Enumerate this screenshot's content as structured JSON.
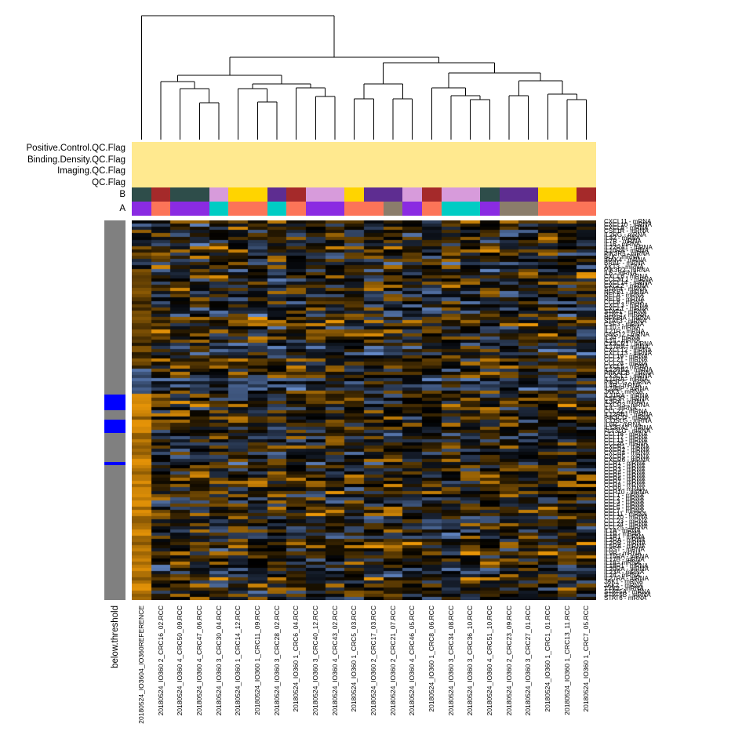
{
  "chart_data": {
    "type": "heatmap",
    "title": "",
    "columns": [
      "20180524_IO3604_IO360REFERENCE",
      "20180524_IO360 2_CRC16_02.RCC",
      "20180524_IO360 4_CRC50_09.RCC",
      "20180524_IO360 4_CRC47_06.RCC",
      "20180524_IO360 3_CRC30_04.RCC",
      "20180524_IO360 1_CRC14_12.RCC",
      "20180524_IO360 1_CRC11_09.RCC",
      "20180524_IO360 3_CRC28_02.RCC",
      "20180524_IO360 1_CRC6_04.RCC",
      "20180524_IO360 3_CRC40_12.RCC",
      "20180524_IO360 4_CRC43_02.RCC",
      "20180524_IO360 1_CRC5_03.RCC",
      "20180524_IO360 2_CRC17_03.RCC",
      "20180524_IO360 2_CRC21_07.RCC",
      "20180524_IO360 4_CRC46_05.RCC",
      "20180524_IO360 1_CRC8_06.RCC",
      "20180524_IO360 3_CRC34_08.RCC",
      "20180524_IO360 3_CRC36_10.RCC",
      "20180524_IO360 4_CRC51_10.RCC",
      "20180524_IO360 2_CRC23_09.RCC",
      "20180524_IO360 3_CRC27_01.RCC",
      "20180524_IO360 1_CRC1_01.RCC",
      "20180524_IO360 1_CRC13_11.RCC",
      "20180524_IO360 1_CRC7_05.RCC"
    ],
    "rows": [
      "CXCL11 - mRNA",
      "CXCL10 - mRNA",
      "CXCL9 - mRNA",
      "CSF1R - mRNA",
      "IL2RG - mRNA",
      "IL32 - mRNA",
      "IL7R - mRNA",
      "IL16 - mRNA",
      "IL22RA1 - mRNA",
      "IL10RA - mRNA",
      "PIK3R5 - mRNA",
      "BLK - mRNA",
      "IRAK4 - mRNA",
      "BRAF - mRNA",
      "AKT3 - mRNA",
      "PIK3R2 - mRNA",
      "IL6 - mRNA",
      "CXCL6 - mRNA",
      "CCL3/L1 - mRNA",
      "CXCL14 - mRNA",
      "CXCL2 - mRNA",
      "STAT4 - mRNA",
      "NFKB1 - mRNA",
      "RELA - mRNA",
      "RELB - mRNA",
      "CCL8 - mRNA",
      "CXCL3 - mRNA",
      "CXCL1 - mRNA",
      "STAT1 - mRNA",
      "STAT2 - mRNA",
      "NFKBIA - mRNA",
      "STAT3 - mRNA",
      "CSF3 - mRNA",
      "IL10 - mRNA",
      "IL21R - mRNA",
      "GNG12 - mRNA",
      "IL34 - mRNA",
      "IL15 - mRNA",
      "CX3CR1 - mRNA",
      "IL17RA - mRNA",
      "CXCL12 - mRNA",
      "CXCL13 - mRNA",
      "CCL19 - mRNA",
      "CCL21 - mRNA",
      "CCL28 - mRNA",
      "CXCL5 - mRNA",
      "IL12RB2 - mRNA",
      "PRKACB - mRNA",
      "CX3CL1 - mRNA",
      "IL11RA - mRNA",
      "PIK3CG - mRNA",
      "IL4R - mRNA",
      "IL18BP - mRNA",
      "JAK3 - mRNA",
      "IL31RA - mRNA",
      "CSF3R - mRNA",
      "IL3RA - mRNA",
      "CXCR3 - mRNA",
      "IL4 - mRNA",
      "CCL22 - mRNA",
      "IL12RB1 - mRNA",
      "PIK3CD - mRNA",
      "ICOSLG - mRNA",
      "IL6R - mRNA",
      "IL13RA1 - mRNA",
      "FLT3LG - mRNA",
      "CCL18 - mRNA",
      "CCL17 - mRNA",
      "CCL13 - mRNA",
      "CCL26 - mRNA",
      "CXCR1 - mRNA",
      "CXCR2 - mRNA",
      "CXCR4 - mRNA",
      "CXCR5 - mRNA",
      "CXCR6 - mRNA",
      "CCR1 - mRNA",
      "CCR2 - mRNA",
      "CCR3 - mRNA",
      "CCR4 - mRNA",
      "CCR5 - mRNA",
      "CCR6 - mRNA",
      "CCR7 - mRNA",
      "CCR8 - mRNA",
      "CCR9 - mRNA",
      "CCR10 - mRNA",
      "CCL1 - mRNA",
      "CCL2 - mRNA",
      "CCL3 - mRNA",
      "CCL4 - mRNA",
      "CCL5 - mRNA",
      "CCL7 - mRNA",
      "CCL11 - mRNA",
      "CCL20 - mRNA",
      "CCL23 - mRNA",
      "CCL24 - mRNA",
      "CCL25 - mRNA",
      "IL1A - mRNA",
      "IL1B - mRNA",
      "IL1R1 - mRNA",
      "IL2RA - mRNA",
      "IL2RB - mRNA",
      "IL5RA - mRNA",
      "IL6ST - mRNA",
      "IL9R - mRNA",
      "IL15RA - mRNA",
      "IL17B - mRNA",
      "IL18 - mRNA",
      "IL18R1 - mRNA",
      "IL20RA - mRNA",
      "IL23A - mRNA",
      "IL24 - mRNA",
      "IL27RA - mRNA",
      "JAK1 - mRNA",
      "JAK2 - mRNA",
      "TYK2 - mRNA",
      "STAT5A - mRNA",
      "STAT5B - mRNA",
      "STAT6 - mRNA"
    ],
    "annotation_row_labels": [
      "Positive.Control.QC.Flag",
      "Binding.Density.QC.Flag",
      "Imaging.QC.Flag",
      "QC.Flag",
      "B",
      "A"
    ],
    "qc_flag_color": "#FFE98F",
    "B_colors": [
      "#2E4D4A",
      "#A52A2A",
      "#2E4D4A",
      "#2E4D4A",
      "#D79BDB",
      "#FFD400",
      "#FFD400",
      "#5E2D91",
      "#A52A2A",
      "#D79BDB",
      "#D79BDB",
      "#FFD400",
      "#5E2D91",
      "#5E2D91",
      "#D79BDB",
      "#A52A2A",
      "#D79BDB",
      "#D79BDB",
      "#2E4D4A",
      "#5E2D91",
      "#5E2D91",
      "#FFD400",
      "#FFD400",
      "#A52A2A"
    ],
    "A_colors": [
      "#8A2BE2",
      "#FC7458",
      "#8A2BE2",
      "#8A2BE2",
      "#00CCC4",
      "#FC7458",
      "#FC7458",
      "#00CCC4",
      "#FC7458",
      "#8A2BE2",
      "#8A2BE2",
      "#FC7458",
      "#FC7458",
      "#8B7D6B",
      "#8A2BE2",
      "#FC7458",
      "#00CCC4",
      "#00CCC4",
      "#8A2BE2",
      "#8B7D6B",
      "#8B7D6B",
      "#FC7458",
      "#FC7458",
      "#FC7458"
    ],
    "row_annotation": {
      "label": "below.threshold",
      "flagged_color": "#0000FF",
      "normal_color": "#808080",
      "flagged_row_ranges": [
        [
          54,
          58
        ],
        [
          62,
          65
        ],
        [
          75,
          75
        ]
      ]
    },
    "dendrogram": [
      20,
      0,
      [
        73,
        [
          96,
          [
            104,
            1,
            [
              113,
              2,
              [
                131,
                3,
                4
              ]
            ]
          ],
          [
            107,
            [
              113,
              5,
              [
                130,
                6,
                7
              ]
            ],
            [
              112,
              8,
              [
                123,
                9,
                10
              ]
            ]
          ]
        ],
        [
          80,
          [
            107,
            [
              126,
              11,
              12
            ],
            [
              126,
              13,
              14
            ]
          ],
          [
            93,
            [
              112,
              15,
              [
                122,
                16,
                [
                  127,
                  17,
                  18
                ]
              ]
            ],
            [
              103,
              [
                122,
                19,
                20
              ],
              [
                120,
                21,
                [
                  127,
                  22,
                  23
                ]
              ]
            ]
          ]
        ]
      ]
    ],
    "heatmap_palette": {
      "low": "#6489C8",
      "mid": "#000000",
      "high": "#E99608"
    },
    "matrix_spec": {
      "seed": 20180524,
      "n_rows": 118,
      "n_cols": 24,
      "reference_column": 0,
      "reference_brown_start_row": 15,
      "reference_blue_start_row": 46,
      "reference_orange_start_row": 54,
      "global_blue_band_rows": [
        49,
        52
      ]
    }
  }
}
